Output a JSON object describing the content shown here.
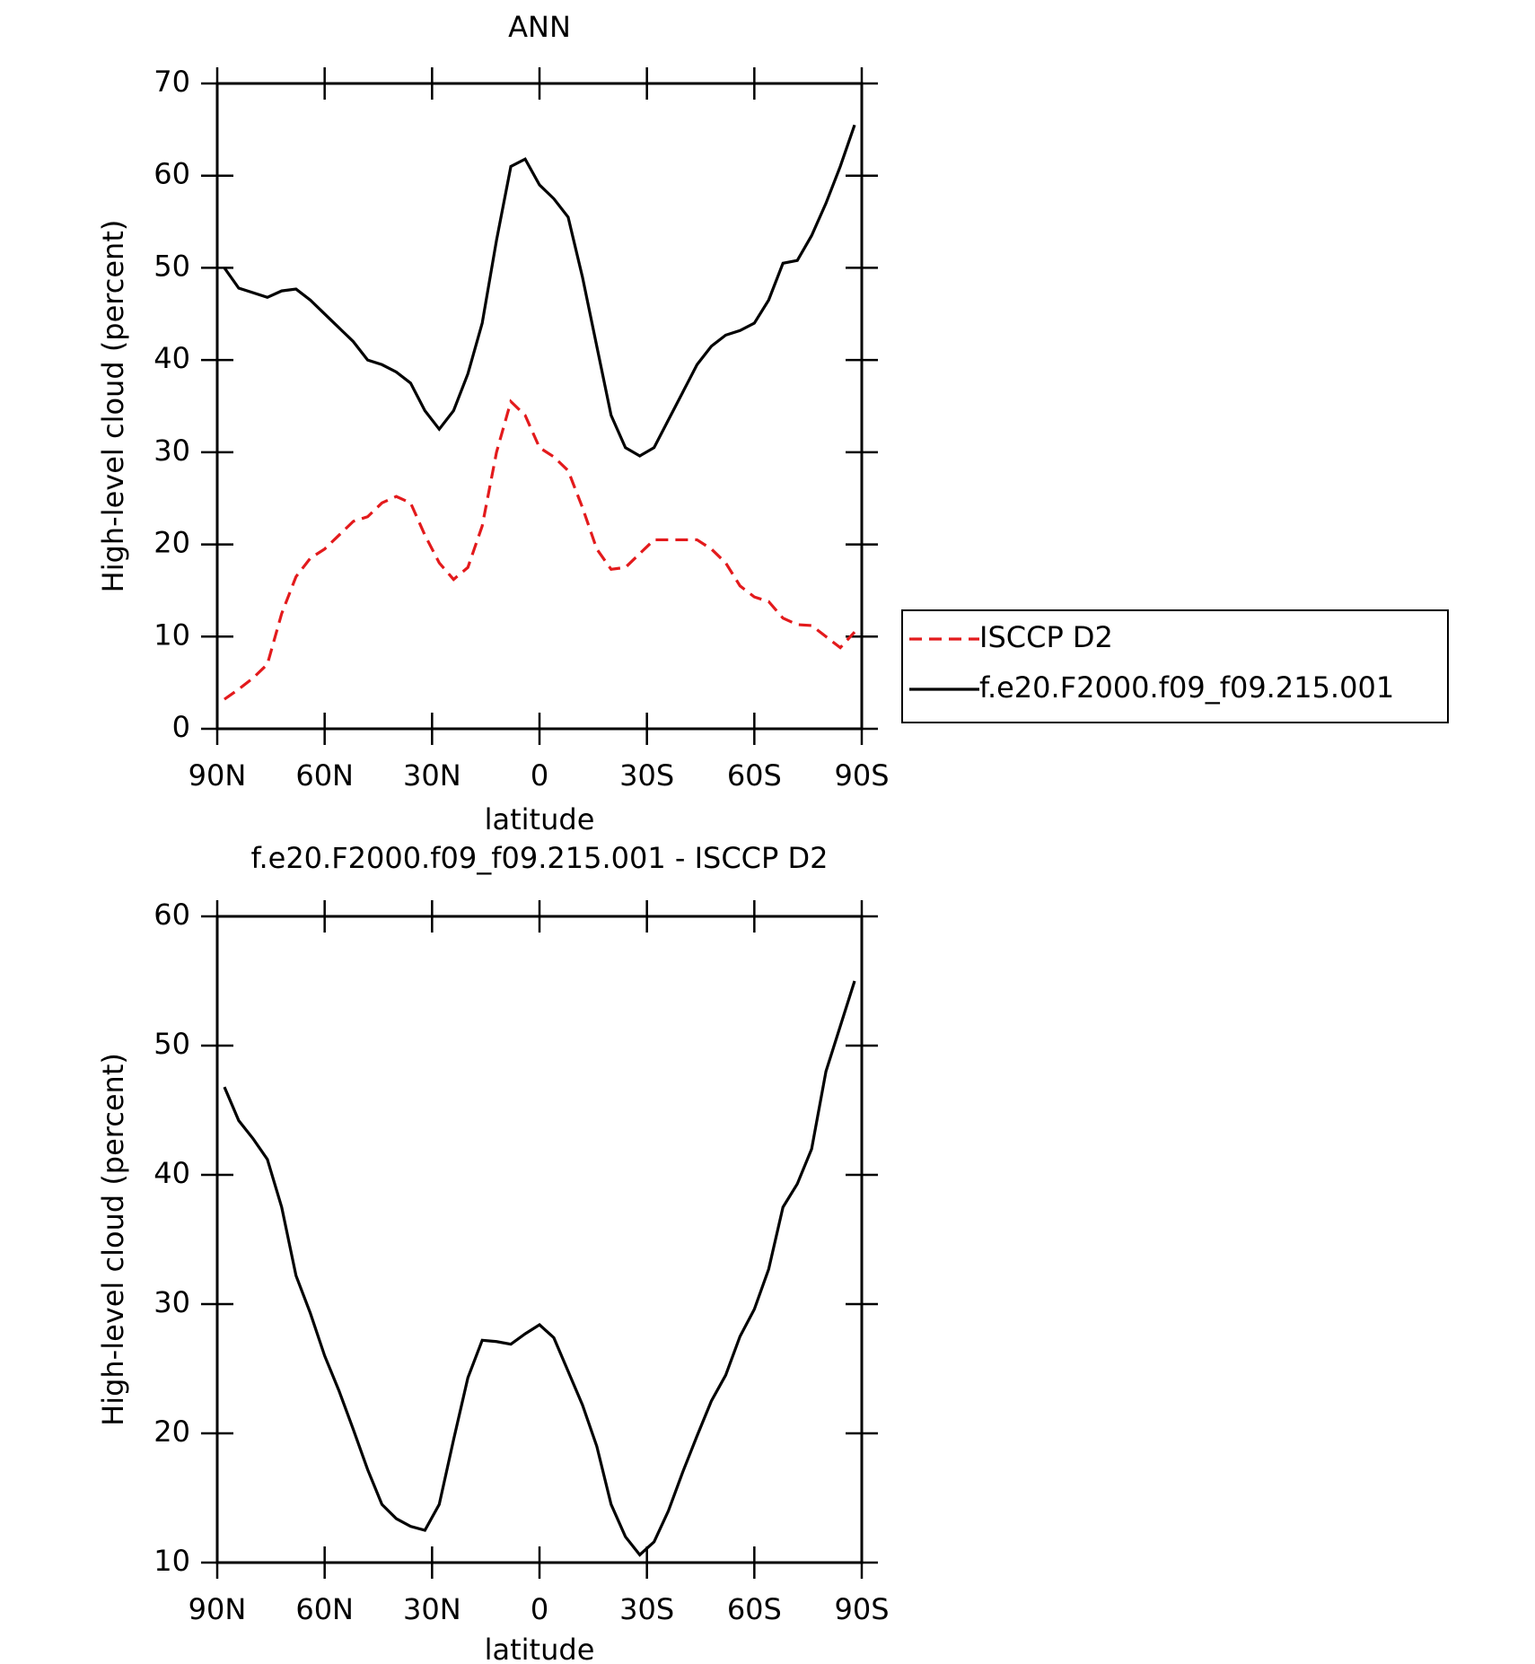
{
  "chart_data": [
    {
      "type": "line",
      "title": "ANN",
      "xlabel": "latitude",
      "ylabel": "High-level cloud (percent)",
      "x": [
        88,
        84,
        80,
        76,
        72,
        68,
        64,
        60,
        56,
        52,
        48,
        44,
        40,
        36,
        32,
        28,
        24,
        20,
        16,
        12,
        8,
        4,
        0,
        -4,
        -8,
        -12,
        -16,
        -20,
        -24,
        -28,
        -32,
        -36,
        -40,
        -44,
        -48,
        -52,
        -56,
        -60,
        -64,
        -68,
        -72,
        -76,
        -80,
        -84,
        -88
      ],
      "series": [
        {
          "name": "ISCCP D2",
          "color": "#e31a1c",
          "line_style": "dashed",
          "values": [
            3.2,
            4.3,
            5.5,
            7,
            12.5,
            16.5,
            18.5,
            19.5,
            21,
            22.5,
            23,
            24.5,
            25.2,
            24.5,
            21,
            18,
            16.2,
            17.5,
            22,
            30,
            35.5,
            34,
            30.5,
            29.5,
            28,
            24,
            19.5,
            17.3,
            17.5,
            19,
            20.5,
            20.5,
            20.5,
            20.5,
            19.5,
            18,
            15.5,
            14.3,
            13.8,
            12,
            11.3,
            11.2,
            10,
            8.8,
            10.5
          ]
        },
        {
          "name": "f.e20.F2000.f09_f09.215.001",
          "color": "#000000",
          "line_style": "solid",
          "values": [
            50,
            47.8,
            47.3,
            46.8,
            47.5,
            47.7,
            46.5,
            45,
            43.5,
            42,
            40,
            39.5,
            38.7,
            37.5,
            34.5,
            32.5,
            34.5,
            38.5,
            44,
            53,
            61,
            61.8,
            59,
            57.5,
            55.5,
            49,
            41.5,
            34,
            30.5,
            29.6,
            30.5,
            33.5,
            36.5,
            39.5,
            41.5,
            42.7,
            43.2,
            44,
            46.5,
            50.5,
            50.8,
            53.5,
            57,
            61,
            65.5
          ]
        }
      ],
      "xlim": [
        90,
        -90
      ],
      "xticks": [
        {
          "value": 90,
          "label": "90N"
        },
        {
          "value": 60,
          "label": "60N"
        },
        {
          "value": 30,
          "label": "30N"
        },
        0,
        {
          "value": -30,
          "label": "30S"
        },
        {
          "value": -60,
          "label": "60S"
        },
        {
          "value": -90,
          "label": "90S"
        }
      ],
      "ylim": [
        0,
        70
      ],
      "yticks": [
        0,
        10,
        20,
        30,
        40,
        50,
        60,
        70
      ],
      "legend": "right"
    },
    {
      "type": "line",
      "title": "f.e20.F2000.f09_f09.215.001 - ISCCP D2",
      "xlabel": "latitude",
      "ylabel": "High-level cloud (percent)",
      "x": [
        88,
        84,
        80,
        76,
        72,
        68,
        64,
        60,
        56,
        52,
        48,
        44,
        40,
        36,
        32,
        28,
        24,
        20,
        16,
        12,
        8,
        4,
        0,
        -4,
        -8,
        -12,
        -16,
        -20,
        -24,
        -28,
        -32,
        -36,
        -40,
        -44,
        -48,
        -52,
        -56,
        -60,
        -64,
        -68,
        -72,
        -76,
        -80,
        -84,
        -88
      ],
      "series": [
        {
          "color": "#000000",
          "line_style": "solid",
          "values": [
            46.8,
            44.2,
            42.8,
            41.2,
            37.5,
            32.2,
            29.3,
            26,
            23.3,
            20.3,
            17.2,
            14.5,
            13.4,
            12.8,
            12.5,
            14.5,
            19.5,
            24.3,
            27.2,
            27.1,
            26.9,
            27.7,
            28.4,
            27.4,
            24.8,
            22.2,
            19,
            14.5,
            12,
            10.6,
            11.6,
            14,
            17,
            19.8,
            22.5,
            24.5,
            27.5,
            29.6,
            32.7,
            37.5,
            39.3,
            42,
            48,
            51.5,
            55
          ]
        }
      ],
      "xlim": [
        90,
        -90
      ],
      "xticks": [
        {
          "value": 90,
          "label": "90N"
        },
        {
          "value": 60,
          "label": "60N"
        },
        {
          "value": 30,
          "label": "30N"
        },
        0,
        {
          "value": -30,
          "label": "30S"
        },
        {
          "value": -60,
          "label": "60S"
        },
        {
          "value": -90,
          "label": "90S"
        }
      ],
      "ylim": [
        10,
        60
      ],
      "yticks": [
        10,
        20,
        30,
        40,
        50,
        60
      ]
    }
  ]
}
